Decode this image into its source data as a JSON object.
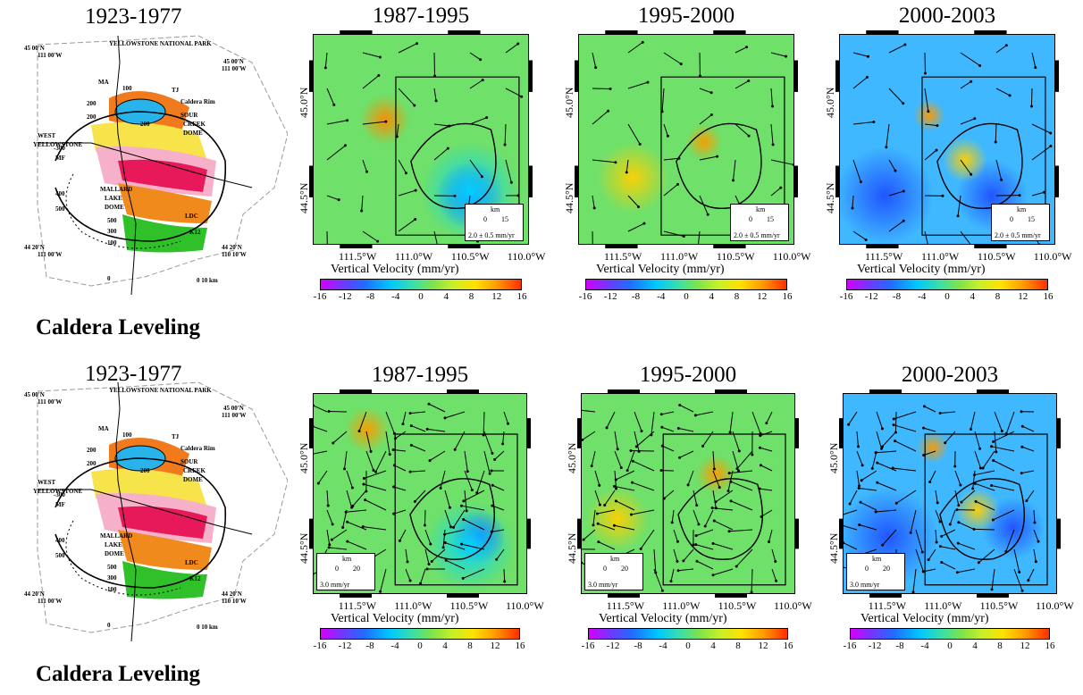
{
  "leveling_title": "1923-1977",
  "leveling_caption": "Caldera Leveling",
  "leveling_labels": {
    "park": "YELLOWSTONE NATIONAL PARK",
    "west": "WEST",
    "yellowstone": "YELLOWSTONE",
    "ma": "MA",
    "tj": "TJ",
    "caldera_rim": "Caldera Rim",
    "sour": "SOUR",
    "creek": "CREEK",
    "dome": "DOME",
    "mallard": "MALLARD",
    "lake": "LAKE",
    "dome2": "DOME",
    "ldc": "LDC",
    "k12": "K12",
    "mf": "MF",
    "scale": "0   10 km",
    "ll_nw1": "45 00'N",
    "ll_nw2": "111 00'W",
    "ll_ne1": "45 00'N",
    "ll_ne2": "111 00'W",
    "ll_sw1": "44 20'N",
    "ll_sw2": "111 00'W",
    "ll_se1": "44 20'N",
    "ll_se2": "110 10'W",
    "c100": "100",
    "c200a": "200",
    "c200b": "200",
    "c200c": "200",
    "c300": "-300",
    "c400": "400",
    "c500": "500",
    "c500b": "500",
    "c300b": "300",
    "c100b": "100",
    "c0": "0"
  },
  "periods": [
    "1987-1995",
    "1995-2000",
    "2000-2003"
  ],
  "lat_labels": [
    "45.0°N",
    "44.5°N"
  ],
  "lon_labels": [
    "111.5°W",
    "111.0°W",
    "110.5°W",
    "110.0°W"
  ],
  "colorbar": {
    "title": "Vertical Velocity (mm/yr)",
    "ticks": [
      "-16",
      "-12",
      "-8",
      "-4",
      "0",
      "4",
      "8",
      "12",
      "16"
    ],
    "colors": [
      "#d400ff",
      "#6a3cff",
      "#1f6dff",
      "#00c8ff",
      "#3fe0a0",
      "#7fe34a",
      "#c6ef2a",
      "#ffe100",
      "#ff9a00",
      "#ff2e00"
    ]
  },
  "scale_top": {
    "unit": "km",
    "zero": "0",
    "max": "15",
    "vel": "2.0 ± 0.5 mm/yr"
  },
  "scale_bottom": {
    "unit": "km",
    "zero": "0",
    "max": "20",
    "vel": "3.0 mm/yr"
  }
}
